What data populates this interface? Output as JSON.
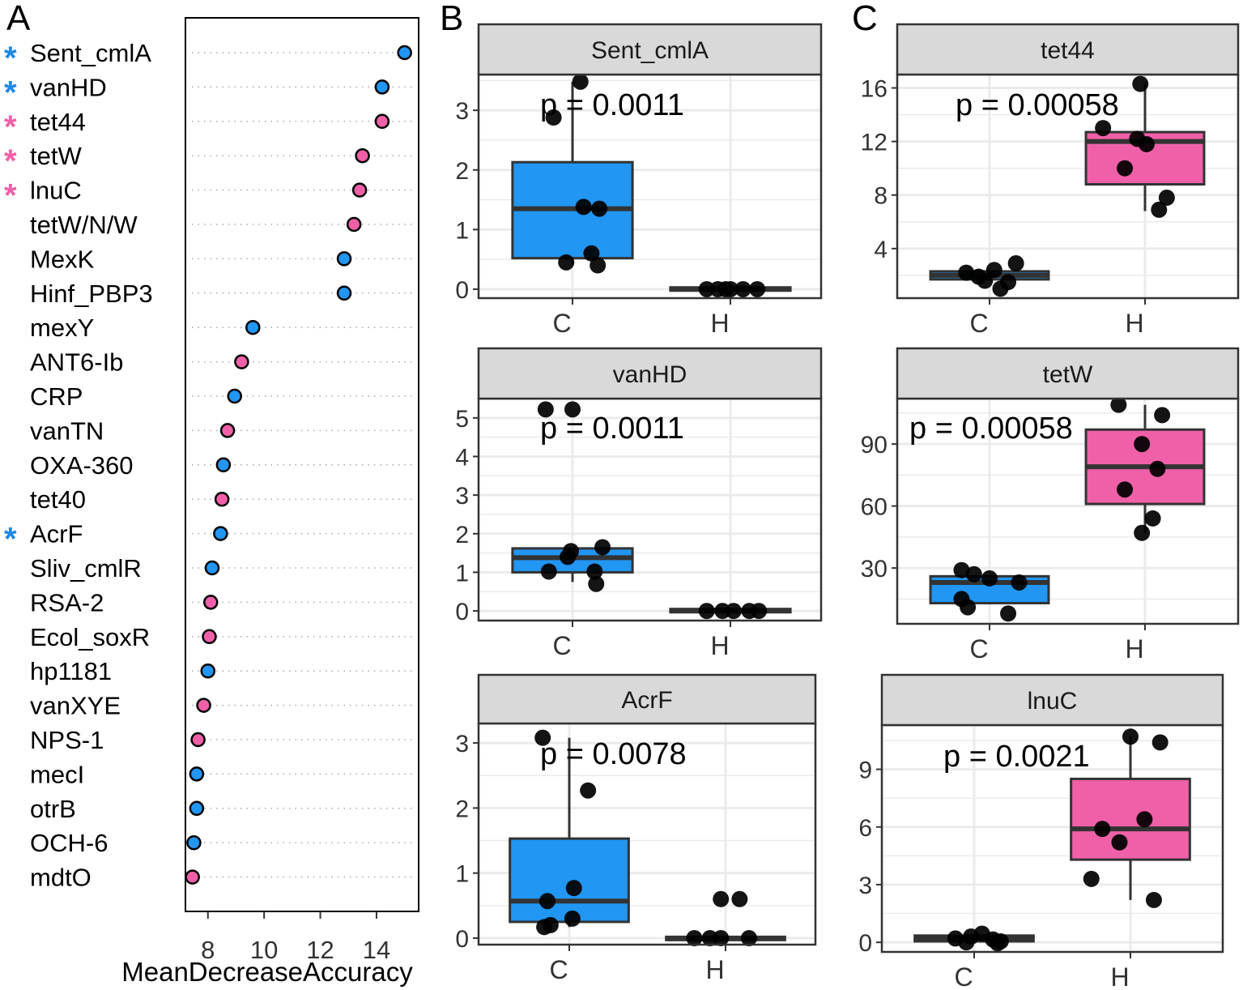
{
  "colors": {
    "C": "#2196F3",
    "H": "#F060A8",
    "star_blue": "#1E88E5",
    "star_pink": "#F060A8",
    "strip": "#D9D9D9",
    "grid": "#EBEBEB",
    "box_line": "#333333",
    "point": "#000000"
  },
  "chart_data": [
    {
      "type": "dot",
      "panel": "A",
      "panel_label": "A",
      "xlabel": "MeanDecreaseAccuracy",
      "xlim": [
        7.2,
        15.5
      ],
      "xticks": [
        8,
        10,
        12,
        14
      ],
      "xtick_labels": [
        "8",
        "10",
        "12",
        "14"
      ],
      "star_symbol": "*",
      "items": [
        {
          "label": "Sent_cmlA",
          "value": 15.0,
          "group": "C",
          "star": "C"
        },
        {
          "label": "vanHD",
          "value": 14.2,
          "group": "C",
          "star": "C"
        },
        {
          "label": "tet44",
          "value": 14.2,
          "group": "H",
          "star": "H"
        },
        {
          "label": "tetW",
          "value": 13.5,
          "group": "H",
          "star": "H"
        },
        {
          "label": "lnuC",
          "value": 13.4,
          "group": "H",
          "star": "H"
        },
        {
          "label": "tetW/N/W",
          "value": 13.2,
          "group": "H",
          "star": null
        },
        {
          "label": "MexK",
          "value": 12.85,
          "group": "C",
          "star": null
        },
        {
          "label": "Hinf_PBP3",
          "value": 12.85,
          "group": "C",
          "star": null
        },
        {
          "label": "mexY",
          "value": 9.6,
          "group": "C",
          "star": null
        },
        {
          "label": "ANT6-Ib",
          "value": 9.2,
          "group": "H",
          "star": null
        },
        {
          "label": "CRP",
          "value": 8.95,
          "group": "C",
          "star": null
        },
        {
          "label": "vanTN",
          "value": 8.7,
          "group": "H",
          "star": null
        },
        {
          "label": "OXA-360",
          "value": 8.55,
          "group": "C",
          "star": null
        },
        {
          "label": "tet40",
          "value": 8.5,
          "group": "H",
          "star": null
        },
        {
          "label": "AcrF",
          "value": 8.45,
          "group": "C",
          "star": "C"
        },
        {
          "label": "Sliv_cmlR",
          "value": 8.15,
          "group": "C",
          "star": null
        },
        {
          "label": "RSA-2",
          "value": 8.1,
          "group": "H",
          "star": null
        },
        {
          "label": "Ecol_soxR",
          "value": 8.05,
          "group": "H",
          "star": null
        },
        {
          "label": "hp1181",
          "value": 8.0,
          "group": "C",
          "star": null
        },
        {
          "label": "vanXYE",
          "value": 7.85,
          "group": "H",
          "star": null
        },
        {
          "label": "NPS-1",
          "value": 7.65,
          "group": "H",
          "star": null
        },
        {
          "label": "mecI",
          "value": 7.6,
          "group": "C",
          "star": null
        },
        {
          "label": "otrB",
          "value": 7.6,
          "group": "C",
          "star": null
        },
        {
          "label": "OCH-6",
          "value": 7.5,
          "group": "C",
          "star": null
        },
        {
          "label": "mdtO",
          "value": 7.45,
          "group": "H",
          "star": null
        }
      ]
    },
    {
      "type": "box",
      "panel": "B",
      "panel_label": "B",
      "title": "Sent_cmlA",
      "pvalue": "p = 0.0011",
      "categories": [
        "C",
        "H"
      ],
      "ylim": [
        -0.15,
        3.6
      ],
      "yticks": [
        0,
        1,
        2,
        3
      ],
      "ytick_labels": [
        "0",
        "1",
        "2",
        "3"
      ],
      "boxes": [
        {
          "cat": "C",
          "q1": 0.52,
          "median": 1.35,
          "q3": 2.13,
          "whisker_low": 0.4,
          "whisker_high": 3.48,
          "fill": "C"
        },
        {
          "cat": "H",
          "q1": 0.0,
          "median": 0.0,
          "q3": 0.03,
          "whisker_low": 0.0,
          "whisker_high": 0.03,
          "fill": "C"
        }
      ],
      "points": [
        {
          "cat": "C",
          "y": 3.48,
          "j": 0.05
        },
        {
          "cat": "C",
          "y": 2.88,
          "j": -0.12
        },
        {
          "cat": "C",
          "y": 1.38,
          "j": 0.07
        },
        {
          "cat": "C",
          "y": 1.35,
          "j": 0.17
        },
        {
          "cat": "C",
          "y": 0.6,
          "j": 0.12
        },
        {
          "cat": "C",
          "y": 0.45,
          "j": -0.04
        },
        {
          "cat": "C",
          "y": 0.4,
          "j": 0.16
        },
        {
          "cat": "H",
          "y": 0.0,
          "j": -0.15
        },
        {
          "cat": "H",
          "y": 0.0,
          "j": -0.08
        },
        {
          "cat": "H",
          "y": 0.0,
          "j": -0.03
        },
        {
          "cat": "H",
          "y": 0.0,
          "j": 0.08
        },
        {
          "cat": "H",
          "y": 0.0,
          "j": 0.17
        },
        {
          "cat": "H",
          "y": 0.0,
          "j": 0.0
        }
      ]
    },
    {
      "type": "box",
      "panel": "B",
      "title": "vanHD",
      "pvalue": "p = 0.0011",
      "categories": [
        "C",
        "H"
      ],
      "ylim": [
        -0.25,
        5.5
      ],
      "yticks": [
        0,
        1,
        2,
        3,
        4,
        5
      ],
      "ytick_labels": [
        "0",
        "1",
        "2",
        "3",
        "4",
        "5"
      ],
      "boxes": [
        {
          "cat": "C",
          "q1": 1.0,
          "median": 1.38,
          "q3": 1.62,
          "whisker_low": 0.75,
          "whisker_high": 1.62,
          "fill": "C"
        },
        {
          "cat": "H",
          "q1": 0.0,
          "median": 0.0,
          "q3": 0.05,
          "whisker_low": 0.0,
          "whisker_high": 0.05,
          "fill": "C"
        }
      ],
      "points": [
        {
          "cat": "C",
          "y": 5.22,
          "j": -0.17
        },
        {
          "cat": "C",
          "y": 5.22,
          "j": 0.0
        },
        {
          "cat": "C",
          "y": 1.65,
          "j": 0.19
        },
        {
          "cat": "C",
          "y": 1.55,
          "j": -0.01
        },
        {
          "cat": "C",
          "y": 1.4,
          "j": -0.03
        },
        {
          "cat": "C",
          "y": 1.02,
          "j": -0.15
        },
        {
          "cat": "C",
          "y": 1.02,
          "j": 0.14
        },
        {
          "cat": "C",
          "y": 0.7,
          "j": 0.15
        },
        {
          "cat": "H",
          "y": 0.0,
          "j": -0.15
        },
        {
          "cat": "H",
          "y": 0.0,
          "j": -0.05
        },
        {
          "cat": "H",
          "y": 0.0,
          "j": 0.02
        },
        {
          "cat": "H",
          "y": 0.0,
          "j": 0.12
        },
        {
          "cat": "H",
          "y": 0.0,
          "j": 0.18
        }
      ]
    },
    {
      "type": "box",
      "panel": "B",
      "title": "AcrF",
      "pvalue": "p = 0.0078",
      "categories": [
        "C",
        "H"
      ],
      "ylim": [
        -0.1,
        3.3
      ],
      "yticks": [
        0,
        1,
        2,
        3
      ],
      "ytick_labels": [
        "0",
        "1",
        "2",
        "3"
      ],
      "boxes": [
        {
          "cat": "C",
          "q1": 0.25,
          "median": 0.57,
          "q3": 1.53,
          "whisker_low": 0.17,
          "whisker_high": 3.08,
          "fill": "C"
        },
        {
          "cat": "H",
          "q1": 0.0,
          "median": 0.0,
          "q3": 0.02,
          "whisker_low": 0.0,
          "whisker_high": 0.02,
          "fill": "C"
        }
      ],
      "points": [
        {
          "cat": "C",
          "y": 3.08,
          "j": -0.17
        },
        {
          "cat": "C",
          "y": 2.27,
          "j": 0.12
        },
        {
          "cat": "C",
          "y": 0.77,
          "j": 0.03
        },
        {
          "cat": "C",
          "y": 0.57,
          "j": -0.14
        },
        {
          "cat": "C",
          "y": 0.3,
          "j": 0.02
        },
        {
          "cat": "C",
          "y": 0.2,
          "j": -0.12
        },
        {
          "cat": "C",
          "y": 0.17,
          "j": -0.16
        },
        {
          "cat": "H",
          "y": 0.6,
          "j": -0.03
        },
        {
          "cat": "H",
          "y": 0.6,
          "j": 0.09
        },
        {
          "cat": "H",
          "y": 0.0,
          "j": -0.2
        },
        {
          "cat": "H",
          "y": 0.0,
          "j": -0.1
        },
        {
          "cat": "H",
          "y": 0.0,
          "j": -0.03
        },
        {
          "cat": "H",
          "y": 0.0,
          "j": 0.15
        }
      ]
    },
    {
      "type": "box",
      "panel": "C",
      "panel_label": "C",
      "title": "tet44",
      "pvalue": "p = 0.00058",
      "categories": [
        "C",
        "H"
      ],
      "ylim": [
        0.3,
        17.0
      ],
      "yticks": [
        4,
        8,
        12,
        16
      ],
      "ytick_labels": [
        "4",
        "8",
        "12",
        "16"
      ],
      "boxes": [
        {
          "cat": "C",
          "q1": 1.7,
          "median": 2.0,
          "q3": 2.3,
          "whisker_low": 1.7,
          "whisker_high": 2.3,
          "fill": "C"
        },
        {
          "cat": "H",
          "q1": 8.8,
          "median": 12.0,
          "q3": 12.7,
          "whisker_low": 6.8,
          "whisker_high": 16.3,
          "fill": "H"
        }
      ],
      "points": [
        {
          "cat": "C",
          "y": 2.9,
          "j": 0.17
        },
        {
          "cat": "C",
          "y": 2.4,
          "j": 0.03
        },
        {
          "cat": "C",
          "y": 2.2,
          "j": -0.15
        },
        {
          "cat": "C",
          "y": 1.9,
          "j": -0.07
        },
        {
          "cat": "C",
          "y": 1.5,
          "j": 0.12
        },
        {
          "cat": "C",
          "y": 1.6,
          "j": -0.03
        },
        {
          "cat": "C",
          "y": 1.0,
          "j": 0.07
        },
        {
          "cat": "H",
          "y": 16.3,
          "j": -0.03
        },
        {
          "cat": "H",
          "y": 13.0,
          "j": -0.27
        },
        {
          "cat": "H",
          "y": 12.2,
          "j": -0.05
        },
        {
          "cat": "H",
          "y": 11.8,
          "j": 0.01
        },
        {
          "cat": "H",
          "y": 10.0,
          "j": -0.13
        },
        {
          "cat": "H",
          "y": 7.8,
          "j": 0.14
        },
        {
          "cat": "H",
          "y": 6.9,
          "j": 0.09
        }
      ]
    },
    {
      "type": "box",
      "panel": "C",
      "title": "tetW",
      "pvalue": "p = 0.00058",
      "categories": [
        "C",
        "H"
      ],
      "ylim": [
        3,
        112
      ],
      "yticks": [
        30,
        60,
        90
      ],
      "ytick_labels": [
        "30",
        "60",
        "90"
      ],
      "boxes": [
        {
          "cat": "C",
          "q1": 13,
          "median": 23,
          "q3": 26,
          "whisker_low": 13,
          "whisker_high": 26,
          "fill": "C"
        },
        {
          "cat": "H",
          "q1": 61,
          "median": 79,
          "q3": 97,
          "whisker_low": 47,
          "whisker_high": 109,
          "fill": "H"
        }
      ],
      "points": [
        {
          "cat": "C",
          "y": 29,
          "j": -0.18
        },
        {
          "cat": "C",
          "y": 27,
          "j": -0.1
        },
        {
          "cat": "C",
          "y": 25,
          "j": 0.0
        },
        {
          "cat": "C",
          "y": 23,
          "j": 0.19
        },
        {
          "cat": "C",
          "y": 15,
          "j": -0.18
        },
        {
          "cat": "C",
          "y": 11,
          "j": -0.14
        },
        {
          "cat": "C",
          "y": 8,
          "j": 0.12
        },
        {
          "cat": "H",
          "y": 109,
          "j": -0.17
        },
        {
          "cat": "H",
          "y": 104,
          "j": 0.11
        },
        {
          "cat": "H",
          "y": 90,
          "j": -0.02
        },
        {
          "cat": "H",
          "y": 78,
          "j": 0.08
        },
        {
          "cat": "H",
          "y": 68,
          "j": -0.13
        },
        {
          "cat": "H",
          "y": 54,
          "j": 0.05
        },
        {
          "cat": "H",
          "y": 47,
          "j": -0.02
        }
      ]
    },
    {
      "type": "box",
      "panel": "C",
      "title": "lnuC",
      "pvalue": "p = 0.0021",
      "categories": [
        "C",
        "H"
      ],
      "ylim": [
        -0.5,
        11.3
      ],
      "yticks": [
        0,
        3,
        6,
        9
      ],
      "ytick_labels": [
        "0",
        "3",
        "6",
        "9"
      ],
      "boxes": [
        {
          "cat": "C",
          "q1": 0.05,
          "median": 0.18,
          "q3": 0.35,
          "whisker_low": 0.05,
          "whisker_high": 0.35,
          "fill": "C"
        },
        {
          "cat": "H",
          "q1": 4.3,
          "median": 5.9,
          "q3": 8.5,
          "whisker_low": 2.2,
          "whisker_high": 10.7,
          "fill": "H"
        }
      ],
      "points": [
        {
          "cat": "C",
          "y": 0.45,
          "j": 0.05
        },
        {
          "cat": "C",
          "y": 0.3,
          "j": -0.02
        },
        {
          "cat": "C",
          "y": 0.2,
          "j": -0.12
        },
        {
          "cat": "C",
          "y": 0.15,
          "j": 0.12
        },
        {
          "cat": "C",
          "y": 0.05,
          "j": 0.17
        },
        {
          "cat": "C",
          "y": 0.0,
          "j": -0.05
        },
        {
          "cat": "C",
          "y": -0.05,
          "j": 0.15
        },
        {
          "cat": "H",
          "y": 10.7,
          "j": 0.0
        },
        {
          "cat": "H",
          "y": 10.4,
          "j": 0.19
        },
        {
          "cat": "H",
          "y": 6.4,
          "j": 0.09
        },
        {
          "cat": "H",
          "y": 5.9,
          "j": -0.18
        },
        {
          "cat": "H",
          "y": 5.2,
          "j": -0.07
        },
        {
          "cat": "H",
          "y": 3.3,
          "j": -0.25
        },
        {
          "cat": "H",
          "y": 2.2,
          "j": 0.15
        }
      ]
    }
  ]
}
